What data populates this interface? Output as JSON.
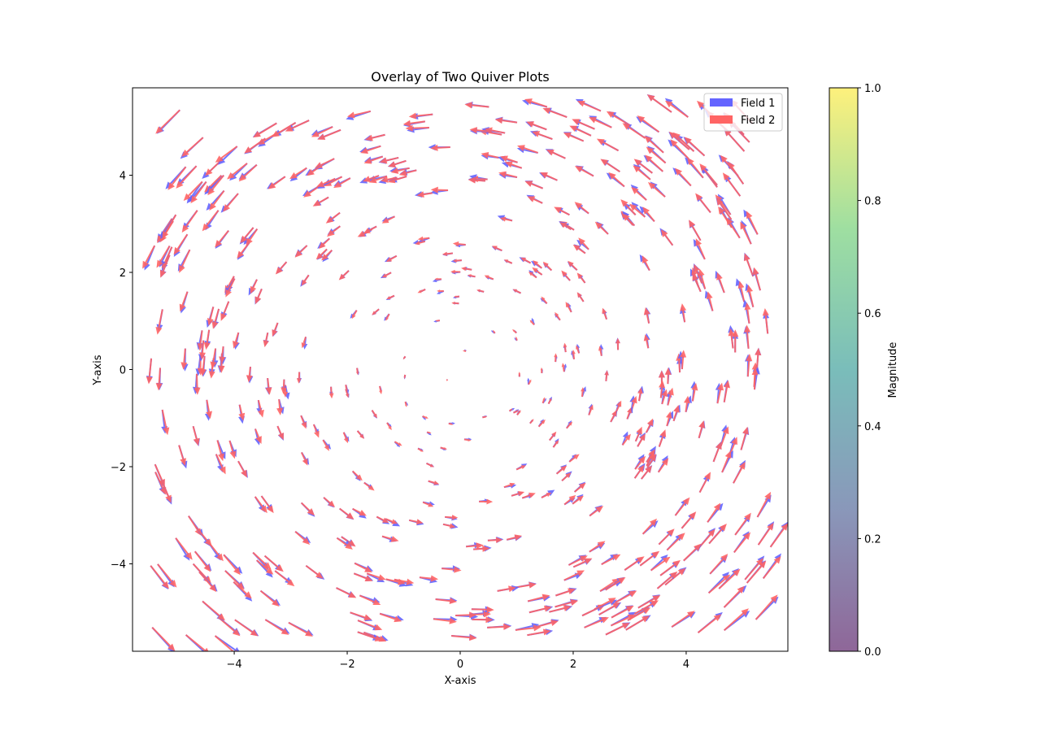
{
  "chart_data": {
    "type": "quiver",
    "title": "Overlay of Two Quiver Plots",
    "xlabel": "X-axis",
    "ylabel": "Y-axis",
    "xlim": [
      -5.8,
      5.8
    ],
    "ylim": [
      -5.8,
      5.8
    ],
    "xticks": [
      -4,
      -2,
      0,
      2,
      4
    ],
    "yticks": [
      -4,
      -2,
      0,
      2,
      4
    ],
    "xtick_labels": [
      "−4",
      "−2",
      "0",
      "2",
      "4"
    ],
    "ytick_labels": [
      "−4",
      "−2",
      "0",
      "2",
      "4"
    ],
    "grid": false,
    "legend_position": "top-right",
    "series": [
      {
        "name": "Field 1",
        "color": "#6464ff",
        "field": "rotational vortex (u = -y, v = x) with small jitter, 500 random points in [-5.5, 5.5]"
      },
      {
        "name": "Field 2",
        "color": "#ff6464",
        "field": "same vortex, slightly perturbed, overlaid on Field 1"
      }
    ],
    "colorbar": {
      "label": "Magnitude",
      "range": [
        0.0,
        1.0
      ],
      "ticks": [
        0.0,
        0.2,
        0.4,
        0.6,
        0.8,
        1.0
      ],
      "tick_labels": [
        "0.0",
        "0.2",
        "0.4",
        "0.6",
        "0.8",
        "1.0"
      ],
      "colormap": "viridis (alpha 0.6)"
    }
  }
}
